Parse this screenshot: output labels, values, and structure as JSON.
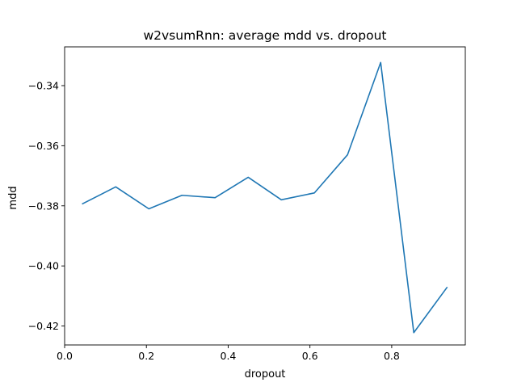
{
  "chart_data": {
    "type": "line",
    "title": "w2vsumRnn: average mdd vs. dropout",
    "xlabel": "dropout",
    "ylabel": "mdd",
    "xlim": [
      0.0,
      0.98
    ],
    "ylim": [
      -0.4263,
      -0.3271
    ],
    "x_ticks": [
      0.0,
      0.2,
      0.4,
      0.6,
      0.8
    ],
    "x_tick_labels": [
      "0.0",
      "0.2",
      "0.4",
      "0.6",
      "0.8"
    ],
    "y_ticks": [
      -0.34,
      -0.36,
      -0.38,
      -0.4,
      -0.42
    ],
    "y_tick_labels": [
      "−0.34",
      "−0.36",
      "−0.38",
      "−0.40",
      "−0.42"
    ],
    "grid": false,
    "series": [
      {
        "color": "#1f77b4",
        "x": [
          0.044,
          0.125,
          0.206,
          0.287,
          0.368,
          0.449,
          0.53,
          0.611,
          0.692,
          0.773,
          0.854,
          0.935
        ],
        "y": [
          -0.3793,
          -0.3737,
          -0.381,
          -0.3765,
          -0.3773,
          -0.3705,
          -0.378,
          -0.3757,
          -0.363,
          -0.3323,
          -0.4222,
          -0.4072
        ]
      }
    ]
  }
}
